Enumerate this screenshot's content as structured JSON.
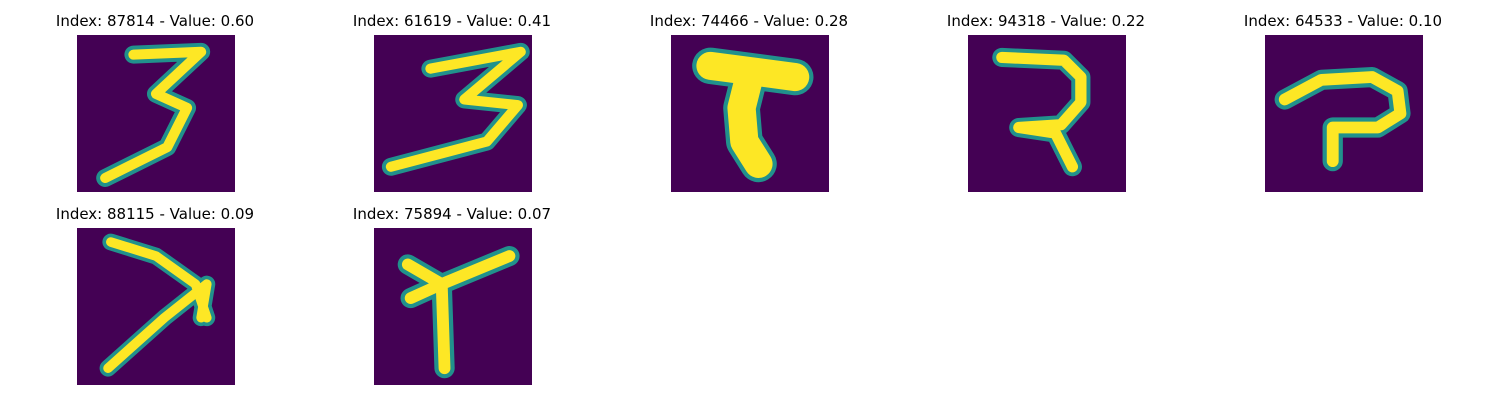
{
  "colors": {
    "background": "#440154",
    "stroke_edge": "#21918c",
    "stroke_mid": "#5ec962",
    "stroke_core": "#fde725"
  },
  "panels": [
    {
      "title": "Index: 87814 - Value: 0.60",
      "index": 87814,
      "value": 0.6,
      "glyph": "three"
    },
    {
      "title": "Index: 61619 - Value: 0.41",
      "index": 61619,
      "value": 0.41,
      "glyph": "three-wide"
    },
    {
      "title": "Index: 74466 - Value: 0.28",
      "index": 74466,
      "value": 0.28,
      "glyph": "blob-t"
    },
    {
      "title": "Index: 94318 - Value: 0.22",
      "index": 94318,
      "value": 0.22,
      "glyph": "hook"
    },
    {
      "title": "Index: 64533 - Value: 0.10",
      "index": 64533,
      "value": 0.1,
      "glyph": "loop-p"
    },
    {
      "title": "Index: 88115 - Value: 0.09",
      "index": 88115,
      "value": 0.09,
      "glyph": "seven-arrow"
    },
    {
      "title": "Index: 75894 - Value: 0.07",
      "index": 75894,
      "value": 0.07,
      "glyph": "fork-y"
    }
  ]
}
